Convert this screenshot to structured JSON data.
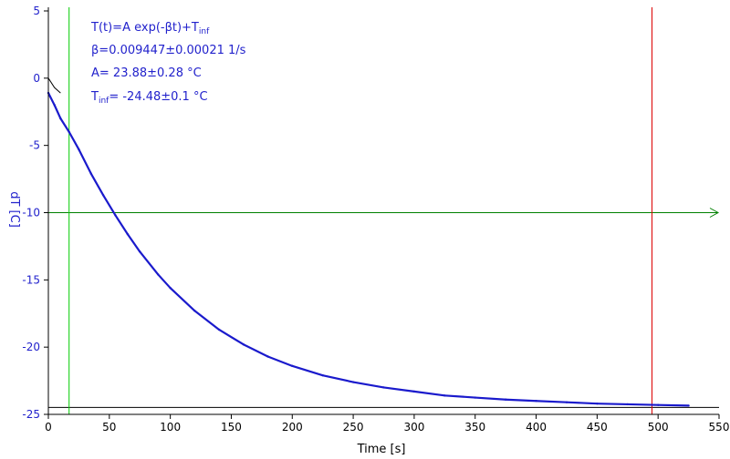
{
  "chart_data": {
    "type": "line",
    "title": "",
    "xlabel": "Time [s]",
    "ylabel": "dT [C]",
    "xlim": [
      0,
      550
    ],
    "ylim": [
      -25,
      5
    ],
    "x_ticks": [
      0,
      50,
      100,
      150,
      200,
      250,
      300,
      350,
      400,
      450,
      500,
      550
    ],
    "y_ticks": [
      5,
      0,
      -5,
      -10,
      -15,
      -20,
      -25
    ],
    "grid": false,
    "legend": "none",
    "series": [
      {
        "color": "#1a1acc",
        "x": [
          0,
          5,
          10,
          17,
          25,
          35,
          45,
          55,
          65,
          75,
          90,
          100,
          120,
          140,
          160,
          180,
          200,
          225,
          250,
          275,
          300,
          325,
          350,
          375,
          400,
          425,
          450,
          475,
          500,
          525
        ],
        "y": [
          -1.1,
          -2.0,
          -3.0,
          -4.0,
          -5.3,
          -7.1,
          -8.7,
          -10.2,
          -11.6,
          -12.9,
          -14.6,
          -15.6,
          -17.3,
          -18.7,
          -19.8,
          -20.7,
          -21.4,
          -22.1,
          -22.6,
          -23.0,
          -23.3,
          -23.6,
          -23.75,
          -23.9,
          -24.0,
          -24.1,
          -24.2,
          -24.25,
          -24.3,
          -24.35
        ]
      }
    ],
    "model_line": {
      "color": "#000000",
      "x": [
        0,
        5,
        10
      ],
      "y": [
        0,
        -0.7,
        -1.1
      ]
    },
    "reference_lines": {
      "horizontal_black": {
        "y": -24.48,
        "color": "#000000"
      },
      "horizontal_green": {
        "y": -10,
        "color": "#008000",
        "arrow": true
      },
      "vertical_green": {
        "x": 17,
        "color": "#00cc00"
      },
      "vertical_red": {
        "x": 495,
        "color": "#dd0000"
      }
    },
    "annotations": [
      {
        "id": "formula",
        "base": "T(t)=A exp(-βt)+T",
        "sub": "inf"
      },
      {
        "id": "beta",
        "text": "β=0.009447±0.00021 1/s"
      },
      {
        "id": "amplitude",
        "text": "A= 23.88±0.28 °C"
      },
      {
        "id": "tinf",
        "base": "T",
        "sub": "inf",
        "rest": "= -24.48±0.1 °C"
      }
    ],
    "colors": {
      "text": "#2222cc",
      "axis": "#000000"
    }
  }
}
